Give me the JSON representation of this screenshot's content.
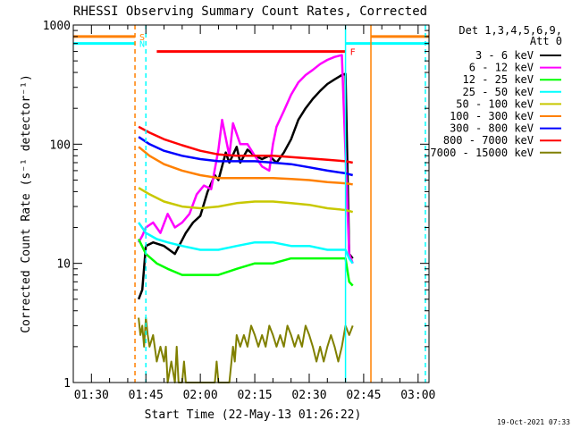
{
  "chart_data": {
    "type": "line",
    "title": "RHESSI Observing Summary Count Rates, Corrected",
    "ylabel": "Corrected Count Rate (s⁻¹ detector⁻¹)",
    "xlabel": "Start Time (22-May-13 01:26:22)",
    "x_range_min": [
      85,
      183
    ],
    "y_range": [
      1,
      1000
    ],
    "y_scale": "log",
    "y_ticks": [
      1,
      10,
      100,
      1000
    ],
    "y_tick_labels": [
      "1",
      "10",
      "100",
      "1000"
    ],
    "x_ticks": [
      90,
      105,
      120,
      135,
      150,
      165,
      180
    ],
    "x_tick_labels": [
      "01:30",
      "01:45",
      "02:00",
      "02:15",
      "02:30",
      "02:45",
      "03:00"
    ],
    "legend": {
      "position": "right",
      "header": [
        "Det 1,3,4,5,6,9,",
        "Att 0"
      ]
    },
    "series": [
      {
        "name": "3 - 6 keV",
        "color": "#000000",
        "x": [
          103,
          104,
          105,
          107,
          110,
          113,
          116,
          118,
          120,
          122,
          124,
          125,
          127,
          128,
          130,
          131,
          133,
          135,
          137,
          139,
          141,
          143,
          145,
          147,
          149,
          151,
          153,
          155,
          157,
          159,
          160,
          161,
          162
        ],
        "y": [
          5,
          6,
          14,
          15,
          14,
          12,
          18,
          22,
          25,
          40,
          55,
          50,
          85,
          70,
          95,
          70,
          90,
          80,
          75,
          80,
          70,
          85,
          110,
          160,
          200,
          240,
          280,
          320,
          350,
          380,
          390,
          12,
          11
        ]
      },
      {
        "name": "6 - 12 keV",
        "color": "#ff00ff",
        "x": [
          103,
          104,
          105,
          107,
          109,
          111,
          113,
          115,
          117,
          119,
          121,
          123,
          125,
          126,
          128,
          129,
          131,
          133,
          135,
          137,
          139,
          140,
          141,
          143,
          145,
          147,
          149,
          151,
          153,
          155,
          157,
          159,
          161,
          162
        ],
        "y": [
          15,
          17,
          20,
          22,
          18,
          26,
          20,
          22,
          26,
          38,
          45,
          42,
          90,
          160,
          80,
          150,
          100,
          100,
          80,
          65,
          60,
          100,
          140,
          190,
          260,
          330,
          380,
          420,
          470,
          510,
          540,
          560,
          12,
          10
        ]
      },
      {
        "name": "12 - 25 keV",
        "color": "#00ff00",
        "x": [
          103,
          105,
          108,
          111,
          115,
          120,
          125,
          130,
          135,
          140,
          145,
          150,
          155,
          160,
          161,
          162
        ],
        "y": [
          16,
          12,
          10,
          9,
          8,
          8,
          8,
          9,
          10,
          10,
          11,
          11,
          11,
          11,
          7,
          6.5
        ]
      },
      {
        "name": "25 - 50 keV",
        "color": "#00ffff",
        "x": [
          103,
          105,
          108,
          111,
          115,
          120,
          125,
          130,
          135,
          140,
          145,
          150,
          155,
          160,
          161,
          162
        ],
        "y": [
          22,
          18,
          16,
          15,
          14,
          13,
          13,
          14,
          15,
          15,
          14,
          14,
          13,
          13,
          11,
          10
        ]
      },
      {
        "name": "50 - 100 keV",
        "color": "#c8c800",
        "x": [
          103,
          106,
          110,
          115,
          120,
          125,
          130,
          135,
          140,
          145,
          150,
          155,
          160,
          162
        ],
        "y": [
          43,
          38,
          33,
          30,
          29,
          30,
          32,
          33,
          33,
          32,
          31,
          29,
          28,
          27
        ]
      },
      {
        "name": "100 - 300 keV",
        "color": "#ff8000",
        "x": [
          103,
          106,
          110,
          115,
          120,
          125,
          130,
          135,
          140,
          145,
          150,
          155,
          160,
          162
        ],
        "y": [
          95,
          80,
          68,
          60,
          55,
          52,
          52,
          52,
          52,
          51,
          50,
          48,
          47,
          46
        ]
      },
      {
        "name": "300 - 800 keV",
        "color": "#0000ff",
        "x": [
          103,
          106,
          110,
          115,
          120,
          125,
          130,
          135,
          140,
          145,
          150,
          155,
          160,
          162
        ],
        "y": [
          115,
          100,
          88,
          80,
          75,
          72,
          72,
          72,
          70,
          68,
          64,
          60,
          57,
          55
        ]
      },
      {
        "name": "800 - 7000 keV",
        "color": "#ff0000",
        "x": [
          103,
          106,
          110,
          115,
          120,
          125,
          130,
          135,
          140,
          145,
          150,
          155,
          160,
          162
        ],
        "y": [
          140,
          125,
          110,
          98,
          88,
          82,
          80,
          80,
          80,
          78,
          76,
          74,
          72,
          70
        ]
      },
      {
        "name": "7000 - 15000 keV",
        "color": "#808000",
        "x": [
          103,
          103.5,
          104,
          104.5,
          105,
          105.5,
          106,
          107,
          108,
          109,
          110,
          110.5,
          111,
          112,
          113,
          113.5,
          114,
          115,
          115.5,
          116,
          117,
          118,
          119,
          120,
          121,
          122,
          123,
          124,
          124.5,
          125,
          126,
          127,
          128,
          129,
          129.5,
          130,
          131,
          132,
          133,
          134,
          135,
          136,
          137,
          138,
          139,
          140,
          141,
          142,
          143,
          144,
          145,
          146,
          147,
          148,
          149,
          150,
          151,
          152,
          153,
          154,
          155,
          156,
          157,
          158,
          159,
          160,
          161,
          162
        ],
        "y": [
          3.5,
          2.5,
          3,
          2,
          3.5,
          2.5,
          2,
          2.5,
          1.5,
          2,
          1.5,
          2,
          1,
          1.5,
          1,
          2,
          1,
          1,
          1.5,
          1,
          1,
          1,
          1,
          1,
          1,
          1,
          1,
          1,
          1.5,
          1,
          1,
          1,
          1,
          2,
          1.5,
          2.5,
          2,
          2.5,
          2,
          3,
          2.5,
          2,
          2.5,
          2,
          3,
          2.5,
          2,
          2.5,
          2,
          3,
          2.5,
          2,
          2.5,
          2,
          3,
          2.5,
          2,
          1.5,
          2,
          1.5,
          2,
          2.5,
          2,
          1.5,
          2,
          3,
          2.5,
          3
        ]
      }
    ],
    "flag_bars": [
      {
        "label": "S",
        "color": "#ff8000",
        "x": [
          85,
          102
        ],
        "y": 800
      },
      {
        "label": "S",
        "color": "#ff8000",
        "x": [
          167,
          183
        ],
        "y": 800
      },
      {
        "label": "N",
        "color": "#00ffff",
        "x": [
          85,
          102
        ],
        "y": 700
      },
      {
        "label": "N",
        "color": "#00ffff",
        "x": [
          160,
          183
        ],
        "y": 700
      },
      {
        "label": "F",
        "color": "#ff0000",
        "x": [
          108,
          160
        ],
        "y": 600
      }
    ],
    "vertical_markers": [
      {
        "color": "#ff8000",
        "style": "dashed",
        "x": 102
      },
      {
        "color": "#00ffff",
        "style": "dashed",
        "x": 105
      },
      {
        "color": "#00ffff",
        "style": "solid",
        "x": 160
      },
      {
        "color": "#ff8000",
        "style": "solid",
        "x": 167
      },
      {
        "color": "#00ffff",
        "style": "dashed",
        "x": 182
      }
    ],
    "footer_date": "19-Oct-2021 07:33"
  }
}
